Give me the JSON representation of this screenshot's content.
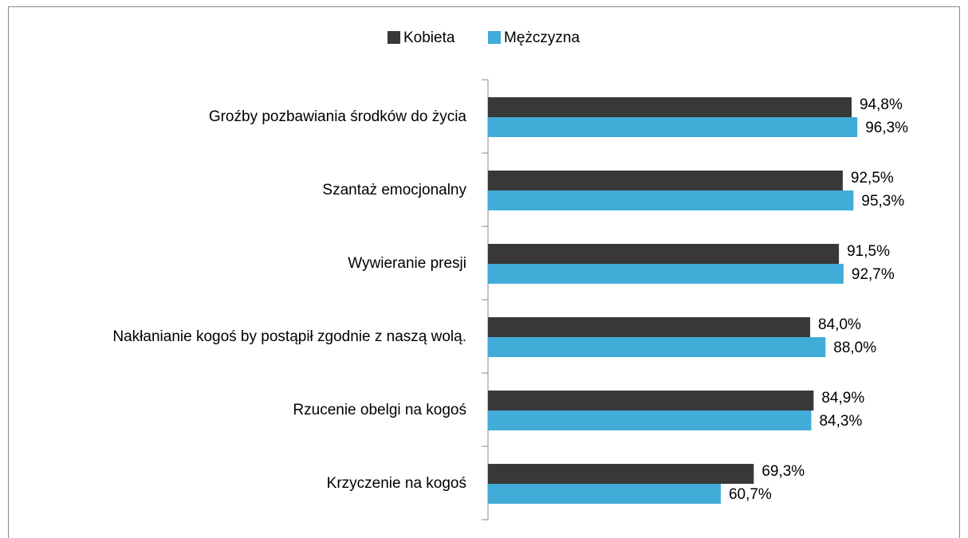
{
  "chart_data": {
    "type": "hbar",
    "categories": [
      "Groźby pozbawiania środków do życia",
      "Szantaż emocjonalny",
      "Wywieranie presji",
      "Nakłanianie kogoś by postąpił zgodnie z naszą wolą.",
      "Rzucenie obelgi na kogoś",
      "Krzyczenie na kogoś"
    ],
    "series": [
      {
        "name": "Kobieta",
        "color": "#383838",
        "values": [
          94.8,
          92.5,
          91.5,
          84.0,
          84.9,
          69.3
        ],
        "value_labels": [
          "94,8%",
          "92,5%",
          "91,5%",
          "84,0%",
          "84,9%",
          "69,3%"
        ]
      },
      {
        "name": "Mężczyzna",
        "color": "#41acd8",
        "values": [
          96.3,
          95.3,
          92.7,
          88.0,
          84.3,
          60.7
        ],
        "value_labels": [
          "96,3%",
          "95,3%",
          "92,7%",
          "88,0%",
          "84,3%",
          "60,7%"
        ]
      }
    ],
    "xlim": [
      0,
      100
    ],
    "legend": "top"
  }
}
